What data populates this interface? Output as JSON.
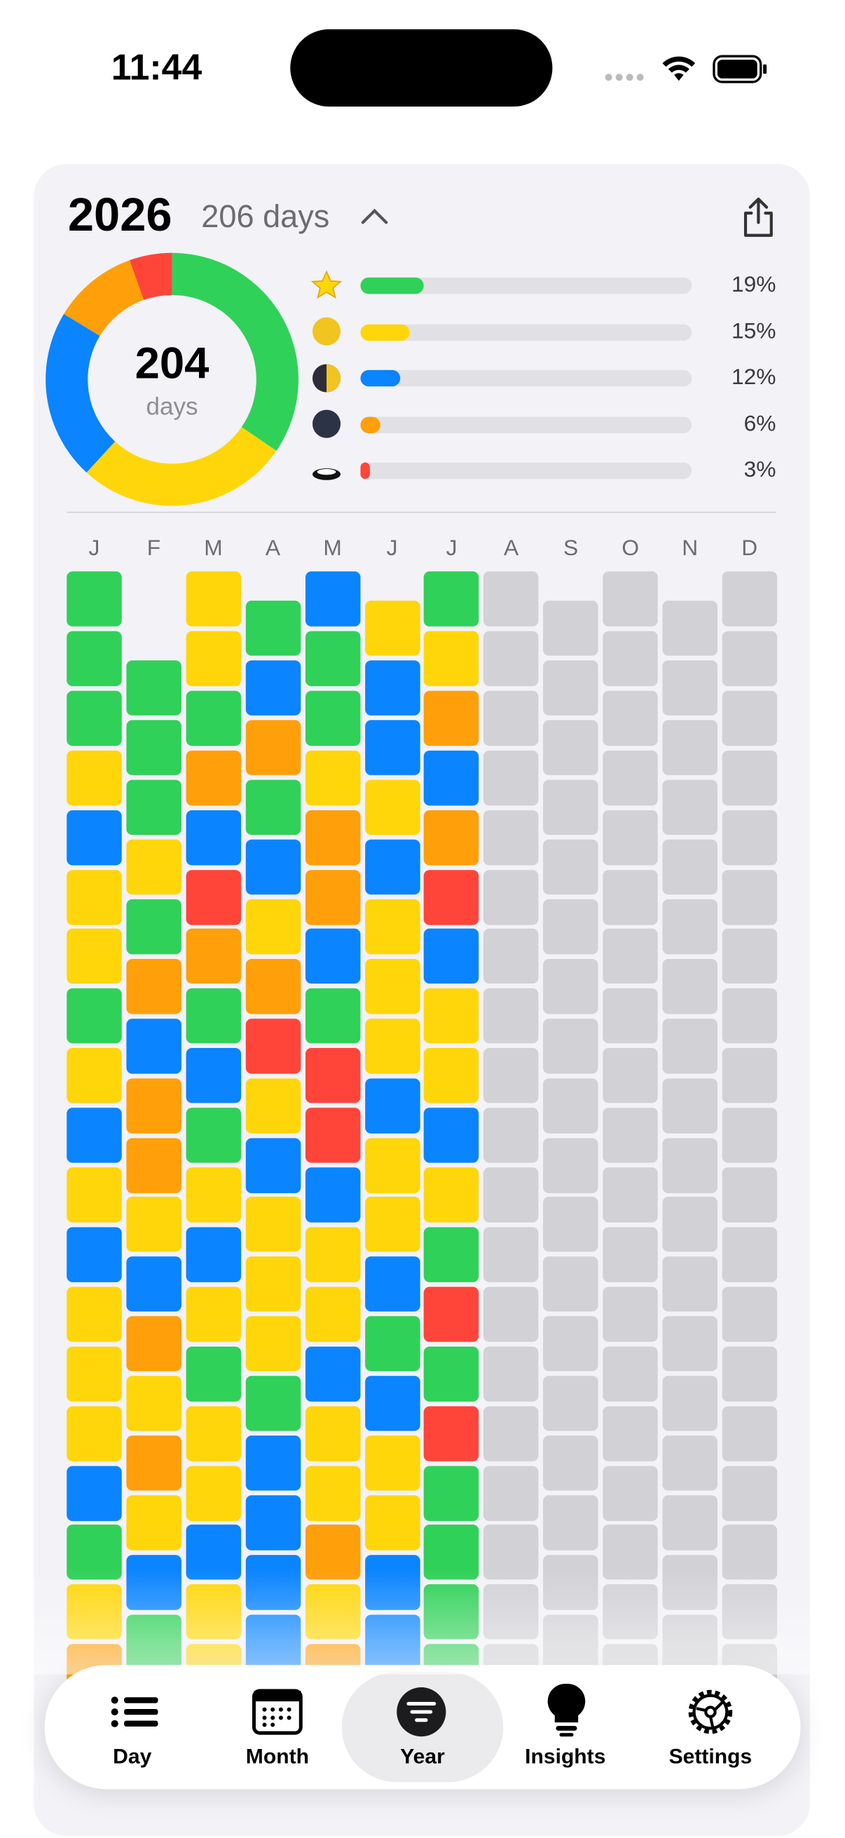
{
  "status_bar": {
    "time": "11:44"
  },
  "header": {
    "year": "2026",
    "days": "206 days"
  },
  "summary": {
    "total": "204",
    "unit": "days"
  },
  "moods": [
    {
      "color": "#30d158",
      "value": 19,
      "label": "19%"
    },
    {
      "color": "#ffd60a",
      "value": 15,
      "label": "15%"
    },
    {
      "color": "#0a84ff",
      "value": 12,
      "label": "12%"
    },
    {
      "color": "#ff9f0a",
      "value": 6,
      "label": "6%"
    },
    {
      "color": "#ff453a",
      "value": 3,
      "label": "3%"
    }
  ],
  "months": [
    {
      "label": "J",
      "days": [
        0,
        0,
        0,
        1,
        2,
        1,
        1,
        0,
        1,
        2,
        1,
        2,
        1,
        1,
        1,
        2,
        0,
        1,
        3
      ]
    },
    {
      "label": "F",
      "days": [
        0,
        0,
        0,
        1,
        0,
        3,
        2,
        3,
        3,
        1,
        2,
        3,
        1,
        3,
        1,
        2,
        0
      ]
    },
    {
      "label": "M",
      "days": [
        1,
        1,
        0,
        3,
        2,
        4,
        3,
        0,
        2,
        0,
        1,
        2,
        1,
        0,
        1,
        1,
        2,
        1,
        1
      ]
    },
    {
      "label": "A",
      "days": [
        0,
        2,
        3,
        0,
        2,
        1,
        3,
        4,
        1,
        2,
        1,
        1,
        1,
        0,
        2,
        2,
        2,
        2
      ]
    },
    {
      "label": "M",
      "days": [
        2,
        0,
        0,
        1,
        3,
        3,
        2,
        0,
        4,
        4,
        2,
        1,
        1,
        2,
        1,
        1,
        3,
        1,
        3
      ]
    },
    {
      "label": "J",
      "days": [
        1,
        2,
        2,
        1,
        2,
        1,
        1,
        1,
        2,
        1,
        1,
        2,
        0,
        2,
        1,
        1,
        2,
        2
      ]
    },
    {
      "label": "J",
      "days": [
        0,
        1,
        3,
        2,
        3,
        4,
        2,
        1,
        1,
        2,
        1,
        0,
        4,
        0,
        4,
        0,
        0,
        0,
        0
      ]
    },
    {
      "label": "A",
      "days": [
        null,
        null,
        null,
        null,
        null,
        null,
        null,
        null,
        null,
        null,
        null,
        null,
        null,
        null,
        null,
        null,
        null,
        null,
        null
      ]
    },
    {
      "label": "S",
      "days": [
        null,
        null,
        null,
        null,
        null,
        null,
        null,
        null,
        null,
        null,
        null,
        null,
        null,
        null,
        null,
        null,
        null,
        null
      ]
    },
    {
      "label": "O",
      "days": [
        null,
        null,
        null,
        null,
        null,
        null,
        null,
        null,
        null,
        null,
        null,
        null,
        null,
        null,
        null,
        null,
        null,
        null,
        null
      ]
    },
    {
      "label": "N",
      "days": [
        null,
        null,
        null,
        null,
        null,
        null,
        null,
        null,
        null,
        null,
        null,
        null,
        null,
        null,
        null,
        null,
        null,
        null
      ]
    },
    {
      "label": "D",
      "days": [
        null,
        null,
        null,
        null,
        null,
        null,
        null,
        null,
        null,
        null,
        null,
        null,
        null,
        null,
        null,
        null,
        null,
        null,
        null
      ]
    }
  ],
  "tabs": [
    {
      "label": "Day"
    },
    {
      "label": "Month"
    },
    {
      "label": "Year"
    },
    {
      "label": "Insights"
    },
    {
      "label": "Settings"
    }
  ],
  "selected_tab": 2
}
